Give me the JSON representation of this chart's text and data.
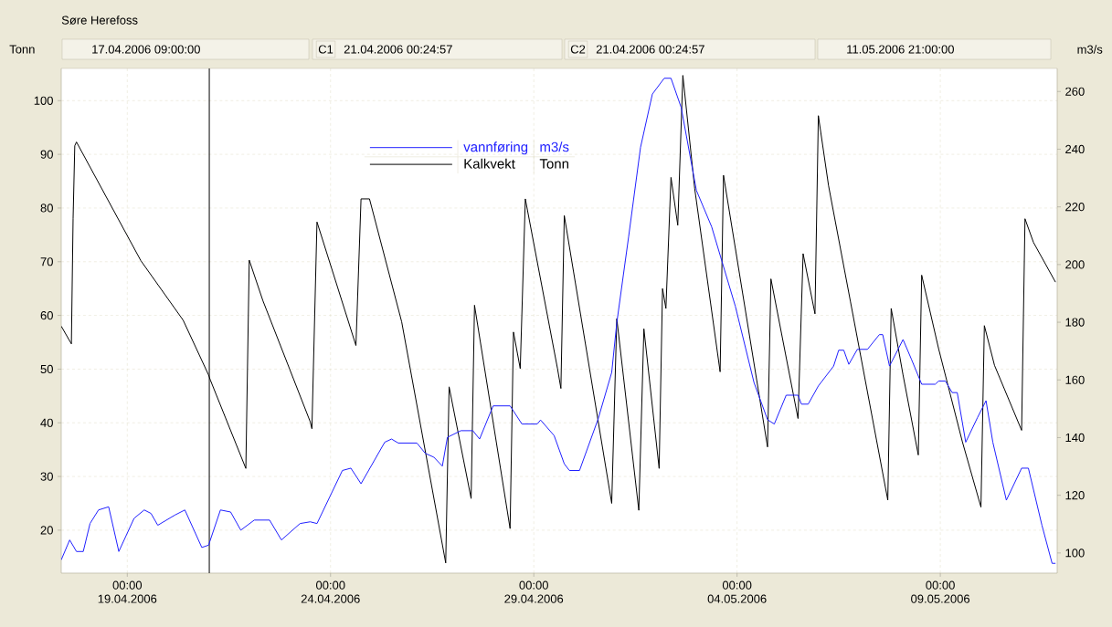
{
  "chart_data": {
    "type": "line",
    "title": "Søre Herefoss",
    "ylabel": "Tonn",
    "y2label": "m3/s",
    "annotations": [
      "17.04.2006 09:00:00",
      "C1",
      "21.04.2006 00:24:57",
      "C2",
      "21.04.2006 00:24:57",
      "11.05.2006 21:00:00",
      "m3/s",
      "Tonn"
    ],
    "xlim": [
      "2006-04-17T09:00",
      "2006-05-11T21:00"
    ],
    "xticks": [
      {
        "value": "2006-04-19T00:00",
        "label": "00:00 19.04.2006"
      },
      {
        "value": "2006-04-24T00:00",
        "label": "00:00 24.04.2006"
      },
      {
        "value": "2006-04-29T00:00",
        "label": "00:00 29.04.2006"
      },
      {
        "value": "2006-05-04T00:00",
        "label": "00:00 04.05.2006"
      },
      {
        "value": "2006-05-09T00:00",
        "label": "00:00 09.05.2006"
      }
    ],
    "ylim": [
      12,
      106
    ],
    "yticks": [
      20,
      30,
      40,
      50,
      60,
      70,
      80,
      90,
      100
    ],
    "y2lim": [
      93,
      268
    ],
    "y2ticks": [
      100,
      120,
      140,
      160,
      180,
      200,
      220,
      240,
      260
    ],
    "grid": true,
    "legend": "top",
    "ref_lines": [
      {
        "axis": "x",
        "value": "2006-04-21T00:24:57",
        "color": "#000000"
      }
    ],
    "series": [
      {
        "name": "vannføring",
        "color": "#1f1fff",
        "axis": "y2",
        "x": [
          "2006-04-17T09:00",
          "2006-04-17T14:00",
          "2006-04-17T18:00",
          "2006-04-17T22:00",
          "2006-04-18T02:00",
          "2006-04-18T07:00",
          "2006-04-18T13:00",
          "2006-04-18T19:00",
          "2006-04-19T04:00",
          "2006-04-19T10:00",
          "2006-04-19T14:00",
          "2006-04-19T18:00",
          "2006-04-20T04:00",
          "2006-04-20T10:00",
          "2006-04-20T20:00",
          "2006-04-21T00:00",
          "2006-04-21T07:00",
          "2006-04-21T13:00",
          "2006-04-21T19:00",
          "2006-04-22T03:00",
          "2006-04-22T12:00",
          "2006-04-22T19:00",
          "2006-04-23T06:00",
          "2006-04-23T12:00",
          "2006-04-23T16:00",
          "2006-04-24T07:00",
          "2006-04-24T12:00",
          "2006-04-24T18:00",
          "2006-04-25T08:00",
          "2006-04-25T12:00",
          "2006-04-25T16:00",
          "2006-04-26T03:00",
          "2006-04-26T08:00",
          "2006-04-26T13:00",
          "2006-04-26T18:00",
          "2006-04-26T21:00",
          "2006-04-27T05:00",
          "2006-04-27T12:00",
          "2006-04-27T16:00",
          "2006-04-28T00:00",
          "2006-04-28T10:00",
          "2006-04-28T17:00",
          "2006-04-29T02:00",
          "2006-04-29T04:00",
          "2006-04-29T12:00",
          "2006-04-29T18:00",
          "2006-04-29T21:00",
          "2006-04-30T03:00",
          "2006-04-30T14:00",
          "2006-04-30T22:00",
          "2006-05-01T01:00",
          "2006-05-01T08:00",
          "2006-05-01T15:00",
          "2006-05-01T22:00",
          "2006-05-02T05:00",
          "2006-05-02T09:00",
          "2006-05-02T15:00",
          "2006-05-03T00:00",
          "2006-05-03T09:00",
          "2006-05-03T23:00",
          "2006-05-04T10:00",
          "2006-05-04T18:00",
          "2006-05-04T22:00",
          "2006-05-05T05:00",
          "2006-05-05T12:00",
          "2006-05-05T14:00",
          "2006-05-05T18:00",
          "2006-05-06T00:00",
          "2006-05-06T09:00",
          "2006-05-06T12:00",
          "2006-05-06T15:00",
          "2006-05-06T18:00",
          "2006-05-06T23:00",
          "2006-05-07T05:00",
          "2006-05-07T12:00",
          "2006-05-07T14:00",
          "2006-05-07T18:00",
          "2006-05-08T02:00",
          "2006-05-08T07:00",
          "2006-05-08T13:00",
          "2006-05-08T21:00",
          "2006-05-08T23:00",
          "2006-05-09T03:00",
          "2006-05-09T07:00",
          "2006-05-09T10:00",
          "2006-05-09T15:00",
          "2006-05-09T22:00",
          "2006-05-10T03:00",
          "2006-05-10T07:00",
          "2006-05-10T15:00",
          "2006-05-11T00:00",
          "2006-05-11T04:00",
          "2006-05-11T12:00",
          "2006-05-11T18:00",
          "2006-05-11T20:00"
        ],
        "values": [
          97.6,
          104.5,
          100.5,
          100.5,
          110.2,
          114.9,
          116.0,
          100.5,
          112.0,
          114.9,
          113.7,
          109.6,
          113.1,
          114.9,
          101.9,
          102.7,
          114.9,
          114.2,
          107.9,
          111.4,
          111.4,
          104.5,
          110.2,
          110.8,
          110.2,
          128.6,
          129.4,
          124.0,
          138.4,
          139.5,
          138.1,
          138.1,
          134.5,
          133.2,
          130.1,
          140.1,
          142.4,
          142.4,
          139.5,
          151.0,
          151.0,
          144.7,
          144.7,
          146.1,
          140.7,
          130.9,
          128.6,
          128.6,
          146.5,
          162.6,
          179.8,
          209.7,
          240.6,
          259.1,
          264.6,
          264.6,
          254.5,
          225.7,
          213.1,
          185.5,
          159.1,
          146.2,
          144.7,
          154.7,
          154.7,
          151.6,
          151.6,
          157.9,
          164.8,
          170.3,
          170.3,
          165.4,
          170.6,
          170.6,
          175.7,
          175.7,
          164.8,
          174.0,
          167.1,
          158.5,
          158.5,
          159.6,
          159.6,
          155.6,
          155.6,
          138.4,
          147.0,
          152.8,
          138.4,
          118.3,
          129.4,
          129.4,
          109.6,
          96.4,
          96.4
        ]
      },
      {
        "name": "Kalkvekt",
        "color": "#000000",
        "x": [
          "2006-04-17T09:00",
          "2006-04-17T15:00",
          "2006-04-17T16:00",
          "2006-04-17T17:00",
          "2006-04-17T18:00",
          "2006-04-19T08:00",
          "2006-04-20T09:00",
          "2006-04-21T00:00",
          "2006-04-21T01:00",
          "2006-04-21T22:00",
          "2006-04-22T00:00",
          "2006-04-22T08:00",
          "2006-04-23T12:00",
          "2006-04-23T13:00",
          "2006-04-23T16:00",
          "2006-04-24T15:00",
          "2006-04-24T18:00",
          "2006-04-24T23:00",
          "2006-04-25T18:00",
          "2006-04-26T20:00",
          "2006-04-26T22:00",
          "2006-04-27T11:00",
          "2006-04-27T13:00",
          "2006-04-28T10:00",
          "2006-04-28T12:00",
          "2006-04-28T16:00",
          "2006-04-28T19:00",
          "2006-04-29T14:00",
          "2006-04-29T16:00",
          "2006-04-29T18:00",
          "2006-04-30T22:00",
          "2006-05-01T01:00",
          "2006-05-01T14:00",
          "2006-05-01T17:00",
          "2006-05-02T02:00",
          "2006-05-02T04:00",
          "2006-05-02T06:00",
          "2006-05-02T09:00",
          "2006-05-02T13:00",
          "2006-05-02T16:00",
          "2006-05-02T23:00",
          "2006-05-03T14:00",
          "2006-05-03T16:00",
          "2006-05-04T18:00",
          "2006-05-04T20:00",
          "2006-05-05T12:00",
          "2006-05-05T15:00",
          "2006-05-05T22:00",
          "2006-05-06T00:00",
          "2006-05-06T06:00",
          "2006-05-06T19:00",
          "2006-05-07T17:00",
          "2006-05-07T19:00",
          "2006-05-08T02:00",
          "2006-05-08T11:00",
          "2006-05-08T13:00",
          "2006-05-08T23:00",
          "2006-05-09T13:00",
          "2006-05-10T00:00",
          "2006-05-10T02:00",
          "2006-05-10T08:00",
          "2006-05-11T00:00",
          "2006-05-11T02:00",
          "2006-05-11T07:00",
          "2006-05-11T20:00"
        ],
        "values": [
          58,
          54.7,
          78.0,
          91.6,
          92.3,
          70.2,
          59.1,
          48.9,
          48.0,
          31.5,
          70.3,
          62.8,
          40.2,
          38.9,
          77.4,
          54.4,
          81.7,
          81.7,
          58.8,
          13.9,
          46.7,
          25.9,
          61.9,
          20.3,
          56.9,
          50.1,
          81.7,
          50.1,
          46.4,
          78.6,
          25.0,
          59.4,
          23.7,
          57.5,
          31.5,
          65.0,
          61.3,
          85.7,
          76.8,
          104.7,
          83.6,
          49.5,
          86.1,
          35.5,
          66.8,
          40.8,
          71.5,
          60.3,
          97.2,
          84.2,
          62.5,
          25.6,
          61.3,
          48.9,
          34.0,
          67.5,
          53.8,
          36.5,
          24.3,
          58.1,
          50.7,
          38.6,
          78.0,
          73.6,
          66.2
        ]
      }
    ]
  }
}
